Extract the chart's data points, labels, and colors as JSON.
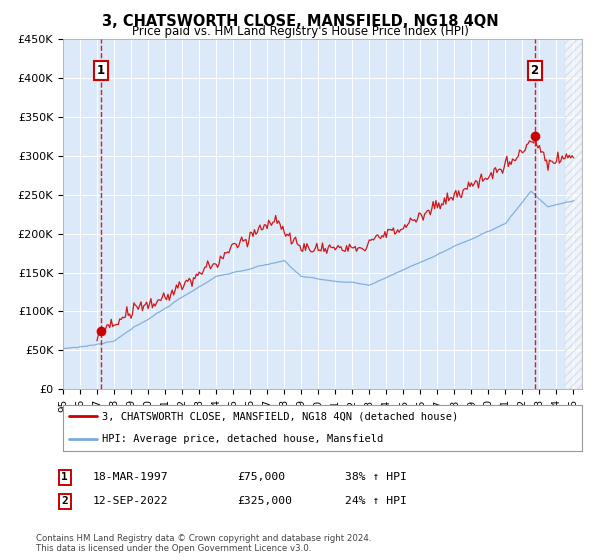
{
  "title": "3, CHATSWORTH CLOSE, MANSFIELD, NG18 4QN",
  "subtitle": "Price paid vs. HM Land Registry's House Price Index (HPI)",
  "house_label": "3, CHATSWORTH CLOSE, MANSFIELD, NG18 4QN (detached house)",
  "hpi_label": "HPI: Average price, detached house, Mansfield",
  "annotation1": {
    "num": "1",
    "date": "18-MAR-1997",
    "price": "£75,000",
    "pct": "38% ↑ HPI"
  },
  "annotation2": {
    "num": "2",
    "date": "12-SEP-2022",
    "price": "£325,000",
    "pct": "24% ↑ HPI"
  },
  "sale1_year": 1997.21,
  "sale1_price": 75000,
  "sale2_year": 2022.71,
  "sale2_price": 325000,
  "ylabel_ticks": [
    "£0",
    "£50K",
    "£100K",
    "£150K",
    "£200K",
    "£250K",
    "£300K",
    "£350K",
    "£400K",
    "£450K"
  ],
  "ylabel_values": [
    0,
    50000,
    100000,
    150000,
    200000,
    250000,
    300000,
    350000,
    400000,
    450000
  ],
  "xmin": 1995,
  "xmax": 2025.5,
  "ymin": 0,
  "ymax": 450000,
  "plot_bg_color": "#dce9f8",
  "house_color": "#cc0000",
  "hpi_color": "#7aaadd",
  "vline_color": "#cc0000",
  "footnote": "Contains HM Land Registry data © Crown copyright and database right 2024.\nThis data is licensed under the Open Government Licence v3.0."
}
